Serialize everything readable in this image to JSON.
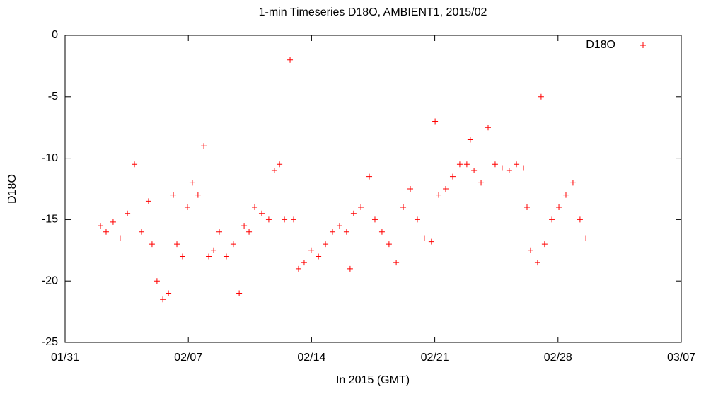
{
  "chart_data": {
    "type": "scatter",
    "title": "1-min Timeseries D18O, AMBIENT1, 2015/02",
    "xlabel": "In 2015 (GMT)",
    "ylabel": "D18O",
    "xlim": [
      0,
      35
    ],
    "xticks": [
      {
        "value": 0,
        "label": "01/31"
      },
      {
        "value": 7,
        "label": "02/07"
      },
      {
        "value": 14,
        "label": "02/14"
      },
      {
        "value": 21,
        "label": "02/21"
      },
      {
        "value": 28,
        "label": "02/28"
      },
      {
        "value": 35,
        "label": "03/07"
      }
    ],
    "ylim": [
      -25,
      0
    ],
    "yticks": [
      -25,
      -20,
      -15,
      -10,
      -5,
      0
    ],
    "grid": false,
    "legend": "top-right",
    "series": [
      {
        "name": "D18O",
        "color": "#ff0000",
        "x": [
          2.01,
          2.33,
          2.73,
          3.13,
          3.54,
          3.94,
          4.34,
          4.74,
          4.94,
          5.22,
          5.55,
          5.87,
          6.15,
          6.35,
          6.67,
          6.95,
          7.23,
          7.55,
          7.88,
          8.16,
          8.44,
          8.76,
          9.16,
          9.56,
          9.89,
          10.17,
          10.45,
          10.77,
          11.17,
          11.57,
          11.89,
          12.18,
          12.46,
          12.78,
          12.98,
          13.26,
          13.58,
          13.98,
          14.39,
          14.79,
          15.19,
          15.59,
          15.99,
          16.19,
          16.39,
          16.8,
          17.28,
          17.6,
          18.0,
          18.4,
          18.81,
          19.21,
          19.61,
          20.01,
          20.41,
          20.81,
          21.02,
          21.22,
          21.62,
          22.02,
          22.42,
          22.82,
          23.02,
          23.23,
          23.63,
          24.03,
          24.43,
          24.83,
          25.23,
          25.64,
          26.04,
          26.24,
          26.44,
          26.84,
          27.04,
          27.24,
          27.65,
          28.05,
          28.45,
          28.85,
          29.25,
          29.58
        ],
        "values": [
          -15.5,
          -16,
          -15.2,
          -16.5,
          -14.5,
          -10.5,
          -16,
          -13.5,
          -17,
          -20,
          -21.5,
          -21,
          -13,
          -17,
          -18,
          -14,
          -12,
          -13,
          -9,
          -18,
          -17.5,
          -16,
          -18,
          -17,
          -21,
          -15.5,
          -16,
          -14,
          -14.5,
          -15,
          -11,
          -10.5,
          -15,
          -2,
          -15,
          -19,
          -18.5,
          -17.5,
          -18,
          -17,
          -16,
          -15.5,
          -16,
          -19,
          -14.5,
          -14,
          -11.5,
          -15,
          -16,
          -17,
          -18.5,
          -14,
          -12.5,
          -15,
          -16.5,
          -16.8,
          -7,
          -13,
          -12.5,
          -11.5,
          -10.5,
          -10.5,
          -8.5,
          -11,
          -12,
          -7.5,
          -10.5,
          -10.8,
          -11,
          -10.5,
          -10.8,
          -14,
          -17.5,
          -18.5,
          -5,
          -17,
          -15,
          -14,
          -13,
          -12,
          -15,
          -16.5
        ]
      }
    ]
  }
}
